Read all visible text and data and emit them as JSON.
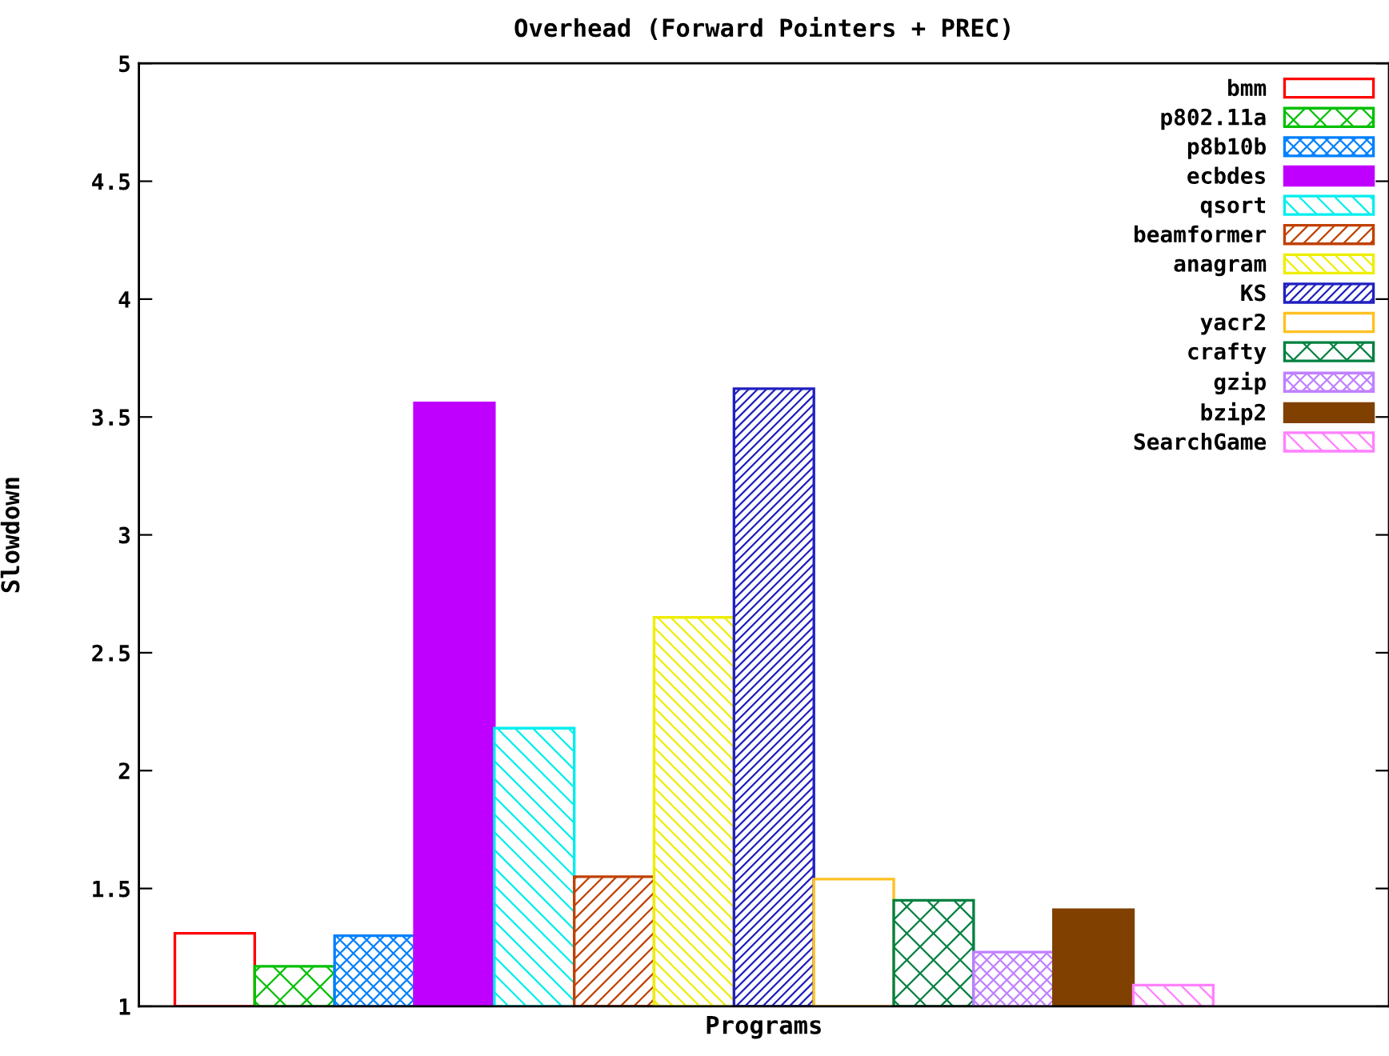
{
  "chart_data": {
    "type": "bar",
    "title": "Overhead (Forward Pointers + PREC)",
    "xlabel": "Programs",
    "ylabel": "Slowdown",
    "categories": [
      null
    ],
    "series": [
      {
        "name": "bmm",
        "color": "#ff0000",
        "values": [
          1.31
        ]
      },
      {
        "name": "p802.11a",
        "color": "#00c000",
        "values": [
          1.17
        ]
      },
      {
        "name": "p8b10b",
        "color": "#0080ff",
        "values": [
          1.3
        ]
      },
      {
        "name": "ecbdes",
        "color": "#c000ff",
        "values": [
          3.56
        ]
      },
      {
        "name": "qsort",
        "color": "#00eeee",
        "values": [
          2.18
        ]
      },
      {
        "name": "beamformer",
        "color": "#c04000",
        "values": [
          1.55
        ]
      },
      {
        "name": "anagram",
        "color": "#eeee00",
        "values": [
          2.65
        ]
      },
      {
        "name": "KS",
        "color": "#2020c0",
        "values": [
          3.62
        ]
      },
      {
        "name": "yacr2",
        "color": "#ffc020",
        "values": [
          1.54
        ]
      },
      {
        "name": "crafty",
        "color": "#008040",
        "values": [
          1.45
        ]
      },
      {
        "name": "gzip",
        "color": "#c080ff",
        "values": [
          1.23
        ]
      },
      {
        "name": "bzip2",
        "color": "#804000",
        "values": [
          1.41
        ]
      },
      {
        "name": "SearchGame",
        "color": "#ff80ff",
        "values": [
          1.09
        ]
      }
    ],
    "ylim": [
      1,
      5
    ],
    "yticks": [
      1,
      1.5,
      2,
      2.5,
      3,
      3.5,
      4,
      4.5,
      5
    ],
    "tick_labels": "y",
    "grid": false,
    "legend": "top right"
  }
}
